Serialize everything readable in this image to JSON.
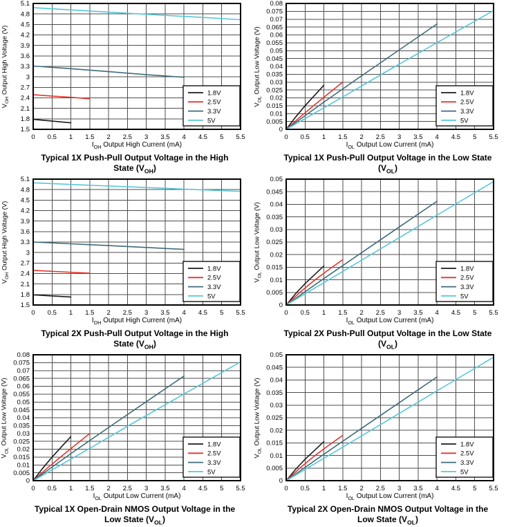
{
  "colors": {
    "grid": "#4d4d4d",
    "frame": "#000000",
    "legend_border": "#000000",
    "series": {
      "1.8V": "#1a1a1a",
      "2.5V": "#e5332b",
      "3.3V": "#3e6b78",
      "5V": "#56c7d8"
    }
  },
  "legend": {
    "labels": [
      "1.8V",
      "2.5V",
      "3.3V",
      "5V"
    ],
    "position": "bottom-right"
  },
  "chart_data": [
    {
      "id": "pp1x-voh",
      "type": "line",
      "title_lines": [
        "Typical 1X Push-Pull Output Voltage in the High",
        "State (V_{OH})"
      ],
      "xlabel": "I_{OH} Output High Current (mA)",
      "ylabel": "V_{OH} Output High Voltage (V)",
      "xlim": [
        0,
        5.5
      ],
      "ylim": [
        1.5,
        5.1
      ],
      "xtick_labels": [
        "0",
        "0.5",
        "1",
        "1.5",
        "2",
        "2.5",
        "3",
        "3.5",
        "4",
        "4.5",
        "5",
        "5.5"
      ],
      "ytick_labels": [
        "1.5",
        "1.8",
        "2.1",
        "2.4",
        "2.7",
        "3",
        "3.3",
        "3.6",
        "3.9",
        "4.2",
        "4.5",
        "4.8",
        "5.1"
      ],
      "grid": true,
      "legend_position": "bottom-right",
      "series": [
        {
          "name": "1.8V",
          "points": [
            [
              0,
              1.785
            ],
            [
              0.5,
              1.735
            ],
            [
              1,
              1.685
            ]
          ]
        },
        {
          "name": "2.5V",
          "points": [
            [
              0,
              2.49
            ],
            [
              0.5,
              2.452
            ],
            [
              1,
              2.415
            ],
            [
              1.5,
              2.375
            ]
          ]
        },
        {
          "name": "3.3V",
          "points": [
            [
              0,
              3.31
            ],
            [
              1,
              3.235
            ],
            [
              2,
              3.15
            ],
            [
              3,
              3.065
            ],
            [
              4,
              2.99
            ]
          ]
        },
        {
          "name": "5V",
          "points": [
            [
              0,
              4.98
            ],
            [
              1.5,
              4.885
            ],
            [
              3,
              4.79
            ],
            [
              4.5,
              4.7
            ],
            [
              5.5,
              4.635
            ]
          ]
        }
      ]
    },
    {
      "id": "pp1x-vol",
      "type": "line",
      "title_lines": [
        "Typical 1X Push-Pull Output Voltage in the Low State",
        "(V_{OL})"
      ],
      "xlabel": "I_{OL} Output Low Current (mA)",
      "ylabel": "V_{OL} Output Low Voltage (V)",
      "xlim": [
        0,
        5.5
      ],
      "ylim": [
        0,
        0.08
      ],
      "xtick_labels": [
        "0",
        "0.5",
        "1",
        "1.5",
        "2",
        "2.5",
        "3",
        "3.5",
        "4",
        "4.5",
        "5",
        "5.5"
      ],
      "ytick_labels": [
        "0",
        "0.005",
        "0.01",
        "0.015",
        "0.02",
        "0.025",
        "0.03",
        "0.035",
        "0.04",
        "0.045",
        "0.05",
        "0.055",
        "0.06",
        "0.065",
        "0.07",
        "0.075",
        "0.08"
      ],
      "grid": true,
      "legend_position": "bottom-right",
      "series": [
        {
          "name": "1.8V",
          "points": [
            [
              0,
              0
            ],
            [
              0.25,
              0.0078
            ],
            [
              0.5,
              0.015
            ],
            [
              0.75,
              0.0215
            ],
            [
              1,
              0.028
            ]
          ]
        },
        {
          "name": "2.5V",
          "points": [
            [
              0,
              0
            ],
            [
              0.375,
              0.008
            ],
            [
              0.75,
              0.0155
            ],
            [
              1.125,
              0.0228
            ],
            [
              1.5,
              0.03
            ]
          ]
        },
        {
          "name": "3.3V",
          "points": [
            [
              0,
              0
            ],
            [
              1,
              0.0173
            ],
            [
              2,
              0.034
            ],
            [
              3,
              0.0505
            ],
            [
              4,
              0.067
            ]
          ]
        },
        {
          "name": "5V",
          "points": [
            [
              0,
              0
            ],
            [
              1.375,
              0.0188
            ],
            [
              2.75,
              0.038
            ],
            [
              4.125,
              0.0568
            ],
            [
              5.5,
              0.0755
            ]
          ]
        }
      ]
    },
    {
      "id": "pp2x-voh",
      "type": "line",
      "title_lines": [
        "Typical 2X Push-Pull Output Voltage in the High",
        "State (V_{OH})"
      ],
      "xlabel": "I_{OH} Output High Current (mA)",
      "ylabel": "V_{OH} Output High Voltage (V)",
      "xlim": [
        0,
        5.5
      ],
      "ylim": [
        1.5,
        5.1
      ],
      "xtick_labels": [
        "0",
        "0.5",
        "1",
        "1.5",
        "2",
        "2.5",
        "3",
        "3.5",
        "4",
        "4.5",
        "5",
        "5.5"
      ],
      "ytick_labels": [
        "1.5",
        "1.8",
        "2.1",
        "2.4",
        "2.7",
        "3",
        "3.3",
        "3.6",
        "3.9",
        "4.2",
        "4.5",
        "4.8",
        "5.1"
      ],
      "grid": true,
      "legend_position": "bottom-right",
      "series": [
        {
          "name": "1.8V",
          "points": [
            [
              0,
              1.79
            ],
            [
              0.5,
              1.76
            ],
            [
              1,
              1.73
            ]
          ]
        },
        {
          "name": "2.5V",
          "points": [
            [
              0,
              2.49
            ],
            [
              0.75,
              2.45
            ],
            [
              1.5,
              2.41
            ]
          ]
        },
        {
          "name": "3.3V",
          "points": [
            [
              0,
              3.3
            ],
            [
              1,
              3.25
            ],
            [
              2,
              3.2
            ],
            [
              3,
              3.145
            ],
            [
              4,
              3.09
            ]
          ]
        },
        {
          "name": "5V",
          "points": [
            [
              0,
              4.995
            ],
            [
              1.375,
              4.93
            ],
            [
              2.75,
              4.87
            ],
            [
              4.125,
              4.81
            ],
            [
              5.5,
              4.75
            ]
          ]
        }
      ]
    },
    {
      "id": "pp2x-vol",
      "type": "line",
      "title_lines": [
        "Typical 2X Push-Pull Output Voltage in the Low State",
        "(V_{OL})"
      ],
      "xlabel": "I_{OL} Output Low Current (mA)",
      "ylabel": "V_{OL} Output Low Voltage (V)",
      "xlim": [
        0,
        5.5
      ],
      "ylim": [
        0,
        0.05
      ],
      "xtick_labels": [
        "0",
        "0.5",
        "1",
        "1.5",
        "2",
        "2.5",
        "3",
        "3.5",
        "4",
        "4.5",
        "5",
        "5.5"
      ],
      "ytick_labels": [
        "0",
        "0.005",
        "0.01",
        "0.015",
        "0.02",
        "0.025",
        "0.03",
        "0.035",
        "0.04",
        "0.045",
        "0.05"
      ],
      "grid": true,
      "legend_position": "bottom-right",
      "series": [
        {
          "name": "1.8V",
          "points": [
            [
              0,
              0
            ],
            [
              0.25,
              0.0045
            ],
            [
              0.5,
              0.0085
            ],
            [
              0.75,
              0.012
            ],
            [
              1,
              0.0155
            ]
          ]
        },
        {
          "name": "2.5V",
          "points": [
            [
              0,
              0
            ],
            [
              0.375,
              0.0052
            ],
            [
              0.75,
              0.0098
            ],
            [
              1.125,
              0.014
            ],
            [
              1.5,
              0.018
            ]
          ]
        },
        {
          "name": "3.3V",
          "points": [
            [
              0,
              0
            ],
            [
              1,
              0.0105
            ],
            [
              2,
              0.0208
            ],
            [
              3,
              0.031
            ],
            [
              4,
              0.0412
            ]
          ]
        },
        {
          "name": "5V",
          "points": [
            [
              0,
              0
            ],
            [
              1.375,
              0.0122
            ],
            [
              2.75,
              0.0245
            ],
            [
              4.125,
              0.0368
            ],
            [
              5.5,
              0.049
            ]
          ]
        }
      ]
    },
    {
      "id": "od1x-vol",
      "type": "line",
      "title_lines": [
        "Typical 1X Open-Drain NMOS Output Voltage in the",
        "Low State (V_{OL})"
      ],
      "xlabel": "I_{OL} Output Low Current (mA)",
      "ylabel": "V_{OL} Output Low Voltage (V)",
      "xlim": [
        0,
        5.5
      ],
      "ylim": [
        0,
        0.08
      ],
      "xtick_labels": [
        "0",
        "0.5",
        "1",
        "1.5",
        "2",
        "2.5",
        "3",
        "3.5",
        "4",
        "4.5",
        "5",
        "5.5"
      ],
      "ytick_labels": [
        "0",
        "0.005",
        "0.01",
        "0.015",
        "0.02",
        "0.025",
        "0.03",
        "0.035",
        "0.04",
        "0.045",
        "0.05",
        "0.055",
        "0.06",
        "0.065",
        "0.07",
        "0.075",
        "0.08"
      ],
      "grid": true,
      "legend_position": "bottom-right",
      "series": [
        {
          "name": "1.8V",
          "points": [
            [
              0,
              0
            ],
            [
              0.25,
              0.0078
            ],
            [
              0.5,
              0.015
            ],
            [
              0.75,
              0.0215
            ],
            [
              1,
              0.028
            ]
          ]
        },
        {
          "name": "2.5V",
          "points": [
            [
              0,
              0
            ],
            [
              0.375,
              0.008
            ],
            [
              0.75,
              0.0155
            ],
            [
              1.125,
              0.0228
            ],
            [
              1.5,
              0.03
            ]
          ]
        },
        {
          "name": "3.3V",
          "points": [
            [
              0,
              0
            ],
            [
              1,
              0.0172
            ],
            [
              2,
              0.0338
            ],
            [
              3,
              0.0502
            ],
            [
              4,
              0.0665
            ]
          ]
        },
        {
          "name": "5V",
          "points": [
            [
              0,
              0
            ],
            [
              1.375,
              0.0188
            ],
            [
              2.75,
              0.038
            ],
            [
              4.125,
              0.0568
            ],
            [
              5.5,
              0.0755
            ]
          ]
        }
      ]
    },
    {
      "id": "od2x-vol",
      "type": "line",
      "title_lines": [
        "Typical 2X Open-Drain NMOS Output Voltage in the",
        "Low State (V_{OL})"
      ],
      "xlabel": "I_{OL} Output Low Current (mA)",
      "ylabel": "V_{OL} Output Low Voltage (V)",
      "xlim": [
        0,
        5.5
      ],
      "ylim": [
        0,
        0.05
      ],
      "xtick_labels": [
        "0",
        "0.5",
        "1",
        "1.5",
        "2",
        "2.5",
        "3",
        "3.5",
        "4",
        "4.5",
        "5",
        "5.5"
      ],
      "ytick_labels": [
        "0",
        "0.005",
        "0.01",
        "0.015",
        "0.02",
        "0.025",
        "0.03",
        "0.035",
        "0.04",
        "0.045",
        "0.05"
      ],
      "grid": true,
      "legend_position": "bottom-right",
      "series": [
        {
          "name": "1.8V",
          "points": [
            [
              0,
              0
            ],
            [
              0.25,
              0.0045
            ],
            [
              0.5,
              0.0085
            ],
            [
              0.75,
              0.012
            ],
            [
              1,
              0.0155
            ]
          ]
        },
        {
          "name": "2.5V",
          "points": [
            [
              0,
              0
            ],
            [
              0.375,
              0.0052
            ],
            [
              0.75,
              0.0098
            ],
            [
              1.125,
              0.014
            ],
            [
              1.5,
              0.018
            ]
          ]
        },
        {
          "name": "3.3V",
          "points": [
            [
              0,
              0
            ],
            [
              1,
              0.0105
            ],
            [
              2,
              0.0208
            ],
            [
              3,
              0.031
            ],
            [
              4,
              0.0412
            ]
          ]
        },
        {
          "name": "5V",
          "points": [
            [
              0,
              0
            ],
            [
              1.375,
              0.0122
            ],
            [
              2.75,
              0.0245
            ],
            [
              4.125,
              0.0368
            ],
            [
              5.5,
              0.049
            ]
          ]
        }
      ]
    }
  ]
}
